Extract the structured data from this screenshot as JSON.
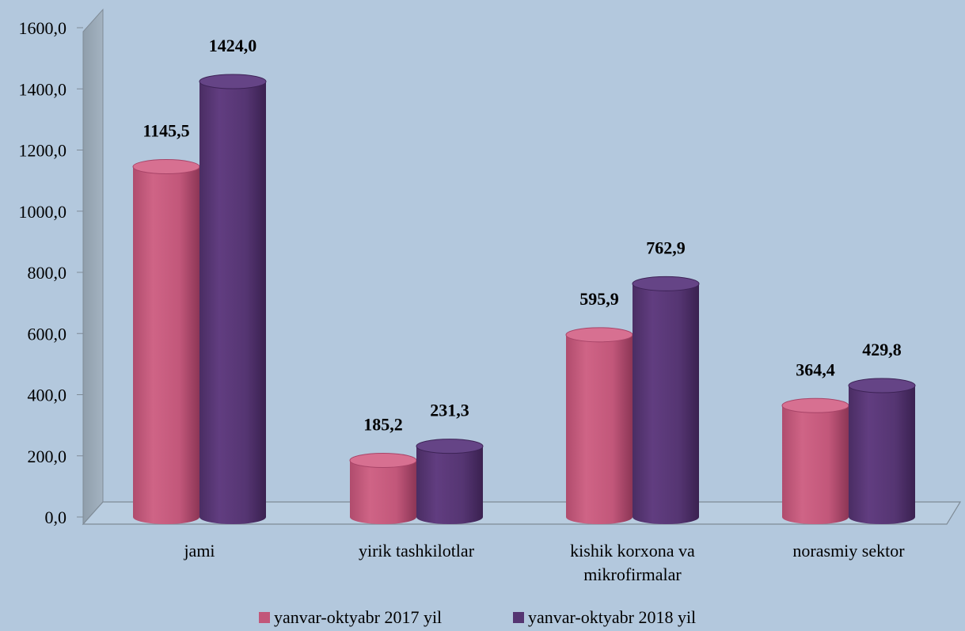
{
  "chart_data": {
    "type": "bar",
    "title": "",
    "xlabel": "",
    "ylabel": "",
    "ylim": [
      0,
      1600
    ],
    "yticks": [
      "0,0",
      "200,0",
      "400,0",
      "600,0",
      "800,0",
      "1000,0",
      "1200,0",
      "1400,0",
      "1600,0"
    ],
    "categories": [
      [
        "jami"
      ],
      [
        "yirik tashkilotlar"
      ],
      [
        "kishik korxona va",
        "mikrofirmalar"
      ],
      [
        "norasmiy sektor"
      ]
    ],
    "series": [
      {
        "name": "yanvar-oktyabr 2017 yil",
        "values": [
          1145.5,
          185.2,
          595.9,
          364.4
        ],
        "labels": [
          "1145,5",
          "185,2",
          "595,9",
          "364,4"
        ],
        "color": "#c2577a"
      },
      {
        "name": "yanvar-oktyabr 2018 yil",
        "values": [
          1424.0,
          231.3,
          762.9,
          429.8
        ],
        "labels": [
          "1424,0",
          "231,3",
          "762,9",
          "429,8"
        ],
        "color": "#553572"
      }
    ],
    "grid": false,
    "legend_position": "bottom",
    "style": "3d-cylinder"
  }
}
